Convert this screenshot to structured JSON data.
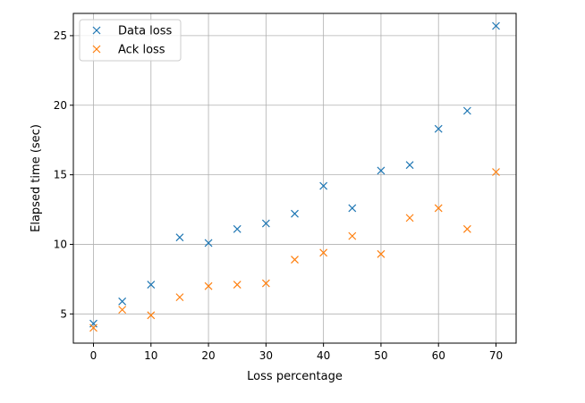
{
  "chart_data": {
    "type": "scatter",
    "title": "",
    "xlabel": "Loss percentage",
    "ylabel": "Elapsed time (sec)",
    "xlim": [
      -3.5,
      73.5
    ],
    "ylim": [
      2.9,
      26.6
    ],
    "xticks": [
      0,
      10,
      20,
      30,
      40,
      50,
      60,
      70
    ],
    "yticks": [
      5,
      10,
      15,
      20,
      25
    ],
    "grid": true,
    "legend_position": "upper-left",
    "marker": "x",
    "x": [
      0,
      5,
      10,
      15,
      20,
      25,
      30,
      35,
      40,
      45,
      50,
      55,
      60,
      65,
      70
    ],
    "series": [
      {
        "name": "Data loss",
        "color": "#1f77b4",
        "values": [
          4.3,
          5.9,
          7.1,
          10.5,
          10.1,
          11.1,
          11.5,
          12.2,
          14.2,
          12.6,
          15.3,
          15.7,
          18.3,
          19.6,
          25.7
        ]
      },
      {
        "name": "Ack loss",
        "color": "#ff7f0e",
        "values": [
          4.0,
          5.3,
          4.9,
          6.2,
          7.0,
          7.1,
          7.2,
          8.9,
          9.4,
          10.6,
          9.3,
          11.9,
          12.6,
          11.1,
          15.2
        ]
      }
    ]
  }
}
